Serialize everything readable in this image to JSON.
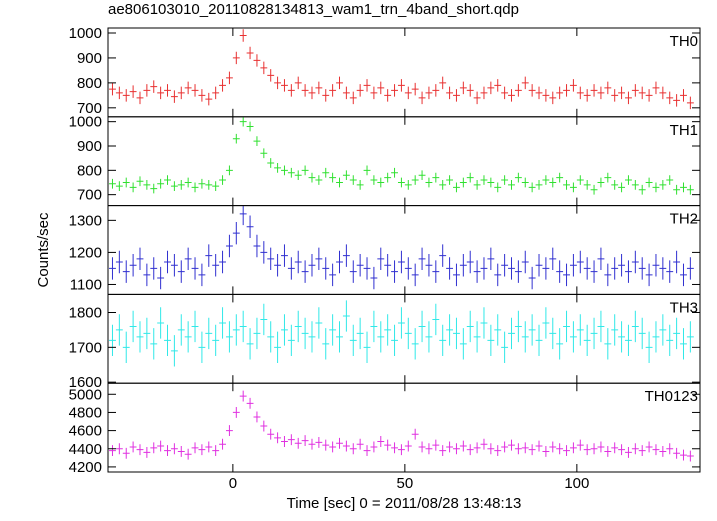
{
  "chart_data": {
    "type": "line",
    "title": "ae806103010_20110828134813_wam1_trn_4band_short.qdp",
    "xlabel": "Time [sec] 0 = 2011/08/28 13:48:13",
    "ylabel": "Counts/sec",
    "xlim": [
      -36.3,
      135.8
    ],
    "xticks": [
      0,
      50,
      100
    ],
    "x": [
      -35,
      -33,
      -31,
      -29,
      -27,
      -25,
      -23,
      -21,
      -19,
      -17,
      -15,
      -13,
      -11,
      -9,
      -7,
      -5,
      -3,
      -1,
      1,
      3,
      5,
      7,
      9,
      11,
      13,
      15,
      17,
      19,
      21,
      23,
      25,
      27,
      29,
      31,
      33,
      35,
      37,
      39,
      41,
      43,
      45,
      47,
      49,
      51,
      53,
      55,
      57,
      59,
      61,
      63,
      65,
      67,
      69,
      71,
      73,
      75,
      77,
      79,
      81,
      83,
      85,
      87,
      89,
      91,
      93,
      95,
      97,
      99,
      101,
      103,
      105,
      107,
      109,
      111,
      113,
      115,
      117,
      119,
      121,
      123,
      125,
      127,
      129,
      131,
      133
    ],
    "series": [
      {
        "name": "TH0",
        "color": "#e83030",
        "ylim": [
          664,
          1020
        ],
        "yticks": [
          700,
          800,
          900,
          1000
        ],
        "error": 25,
        "values": [
          775,
          760,
          750,
          765,
          740,
          770,
          785,
          760,
          770,
          745,
          760,
          780,
          770,
          750,
          735,
          760,
          790,
          820,
          900,
          990,
          920,
          890,
          860,
          830,
          800,
          790,
          770,
          800,
          770,
          760,
          780,
          750,
          770,
          800,
          760,
          740,
          770,
          790,
          760,
          780,
          750,
          770,
          790,
          760,
          775,
          740,
          760,
          770,
          800,
          760,
          750,
          780,
          770,
          740,
          760,
          780,
          790,
          760,
          750,
          770,
          800,
          770,
          760,
          750,
          740,
          760,
          770,
          790,
          760,
          750,
          770,
          760,
          780,
          750,
          760,
          740,
          770,
          760,
          750,
          780,
          760,
          740,
          730,
          750,
          720
        ]
      },
      {
        "name": "TH1",
        "color": "#30e030",
        "ylim": [
          655,
          1020
        ],
        "yticks": [
          700,
          800,
          900,
          1000
        ],
        "error": 20,
        "values": [
          745,
          735,
          750,
          730,
          755,
          740,
          725,
          745,
          760,
          735,
          740,
          750,
          730,
          745,
          740,
          735,
          760,
          800,
          930,
          1000,
          980,
          920,
          870,
          830,
          810,
          800,
          790,
          780,
          800,
          770,
          760,
          790,
          770,
          750,
          780,
          760,
          740,
          800,
          760,
          750,
          770,
          790,
          750,
          740,
          760,
          780,
          750,
          770,
          740,
          760,
          730,
          750,
          770,
          740,
          760,
          750,
          730,
          760,
          740,
          770,
          750,
          730,
          740,
          760,
          750,
          770,
          740,
          730,
          760,
          740,
          720,
          750,
          770,
          740,
          730,
          760,
          740,
          720,
          750,
          730,
          740,
          760,
          720,
          730,
          720
        ]
      },
      {
        "name": "TH2",
        "color": "#3030d0",
        "ylim": [
          1069,
          1346
        ],
        "yticks": [
          1100,
          1200,
          1300
        ],
        "error": 35,
        "values": [
          1150,
          1170,
          1140,
          1160,
          1180,
          1130,
          1150,
          1120,
          1170,
          1160,
          1140,
          1180,
          1150,
          1130,
          1190,
          1160,
          1170,
          1220,
          1260,
          1320,
          1280,
          1220,
          1200,
          1180,
          1160,
          1190,
          1150,
          1170,
          1140,
          1160,
          1180,
          1150,
          1130,
          1170,
          1190,
          1140,
          1160,
          1150,
          1120,
          1180,
          1160,
          1140,
          1170,
          1150,
          1130,
          1180,
          1160,
          1140,
          1190,
          1150,
          1130,
          1160,
          1170,
          1140,
          1150,
          1180,
          1130,
          1160,
          1150,
          1140,
          1170,
          1120,
          1160,
          1150,
          1180,
          1140,
          1130,
          1160,
          1170,
          1150,
          1140,
          1180,
          1130,
          1150,
          1160,
          1140,
          1170,
          1150,
          1130,
          1160,
          1150,
          1140,
          1170,
          1130,
          1150
        ]
      },
      {
        "name": "TH3",
        "color": "#30e8e8",
        "ylim": [
          1597,
          1852
        ],
        "yticks": [
          1600,
          1700,
          1800
        ],
        "error": 45,
        "values": [
          1720,
          1750,
          1700,
          1760,
          1730,
          1740,
          1710,
          1770,
          1720,
          1690,
          1750,
          1730,
          1760,
          1700,
          1740,
          1720,
          1770,
          1730,
          1750,
          1760,
          1710,
          1740,
          1780,
          1730,
          1700,
          1750,
          1720,
          1760,
          1740,
          1730,
          1770,
          1710,
          1750,
          1730,
          1790,
          1720,
          1740,
          1700,
          1760,
          1730,
          1750,
          1720,
          1770,
          1740,
          1710,
          1760,
          1730,
          1780,
          1720,
          1750,
          1740,
          1710,
          1760,
          1730,
          1770,
          1720,
          1750,
          1700,
          1740,
          1760,
          1730,
          1750,
          1720,
          1770,
          1740,
          1710,
          1760,
          1730,
          1750,
          1720,
          1740,
          1760,
          1710,
          1750,
          1730,
          1720,
          1760,
          1740,
          1700,
          1730,
          1750,
          1720,
          1740,
          1710,
          1730
        ]
      },
      {
        "name": "TH0123",
        "color": "#e030e0",
        "ylim": [
          4144,
          5122
        ],
        "yticks": [
          4200,
          4400,
          4600,
          4800,
          5000
        ],
        "error": 60,
        "values": [
          4380,
          4400,
          4350,
          4420,
          4390,
          4360,
          4410,
          4430,
          4380,
          4400,
          4370,
          4340,
          4410,
          4390,
          4420,
          4380,
          4450,
          4600,
          4800,
          4980,
          4900,
          4750,
          4650,
          4560,
          4520,
          4480,
          4500,
          4460,
          4490,
          4450,
          4470,
          4440,
          4420,
          4460,
          4430,
          4400,
          4450,
          4380,
          4420,
          4480,
          4440,
          4410,
          4390,
          4430,
          4560,
          4420,
          4400,
          4440,
          4380,
          4420,
          4400,
          4430,
          4390,
          4410,
          4450,
          4400,
          4380,
          4420,
          4440,
          4400,
          4410,
          4390,
          4430,
          4370,
          4420,
          4400,
          4380,
          4410,
          4440,
          4390,
          4400,
          4420,
          4370,
          4410,
          4390,
          4360,
          4400,
          4380,
          4420,
          4390,
          4370,
          4400,
          4350,
          4330,
          4320
        ]
      }
    ]
  }
}
